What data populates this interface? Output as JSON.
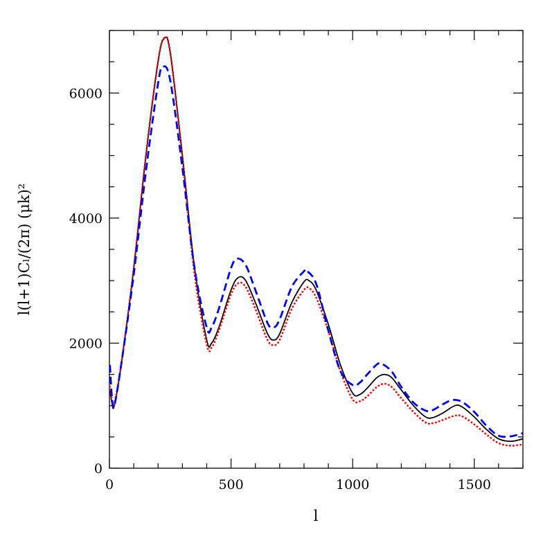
{
  "chart_data": {
    "type": "line",
    "title": "",
    "xlabel": "l",
    "ylabel": "l(l+1)Cₗ/(2π)  (μk)²",
    "xlim": [
      0,
      1700
    ],
    "ylim": [
      0,
      7000
    ],
    "x_ticks": [
      0,
      500,
      1000,
      1500
    ],
    "y_ticks": [
      0,
      2000,
      4000,
      6000
    ],
    "x_tick_labels": [
      "0",
      "500",
      "1000",
      "1500"
    ],
    "y_tick_labels": [
      "0",
      "2000",
      "4000",
      "6000"
    ],
    "grid": false,
    "series": [
      {
        "style": "solid",
        "color": "#000000",
        "points": [
          [
            2,
            1250
          ],
          [
            10,
            1050
          ],
          [
            20,
            1000
          ],
          [
            50,
            1700
          ],
          [
            100,
            3200
          ],
          [
            150,
            5000
          ],
          [
            200,
            6500
          ],
          [
            225,
            6870
          ],
          [
            250,
            6650
          ],
          [
            300,
            5000
          ],
          [
            350,
            3200
          ],
          [
            400,
            2050
          ],
          [
            420,
            2000
          ],
          [
            450,
            2250
          ],
          [
            500,
            2850
          ],
          [
            530,
            3050
          ],
          [
            560,
            3000
          ],
          [
            600,
            2650
          ],
          [
            650,
            2150
          ],
          [
            675,
            2050
          ],
          [
            700,
            2150
          ],
          [
            750,
            2650
          ],
          [
            800,
            2980
          ],
          [
            820,
            3000
          ],
          [
            850,
            2850
          ],
          [
            900,
            2300
          ],
          [
            950,
            1650
          ],
          [
            1000,
            1200
          ],
          [
            1030,
            1180
          ],
          [
            1060,
            1280
          ],
          [
            1100,
            1450
          ],
          [
            1130,
            1500
          ],
          [
            1160,
            1450
          ],
          [
            1200,
            1250
          ],
          [
            1250,
            1000
          ],
          [
            1300,
            820
          ],
          [
            1330,
            810
          ],
          [
            1370,
            880
          ],
          [
            1420,
            1000
          ],
          [
            1450,
            980
          ],
          [
            1500,
            820
          ],
          [
            1550,
            620
          ],
          [
            1600,
            470
          ],
          [
            1650,
            430
          ],
          [
            1700,
            470
          ]
        ]
      },
      {
        "style": "dotted",
        "color": "#ff0000",
        "points": [
          [
            2,
            1300
          ],
          [
            10,
            1100
          ],
          [
            20,
            1030
          ],
          [
            50,
            1700
          ],
          [
            100,
            3200
          ],
          [
            150,
            5000
          ],
          [
            200,
            6500
          ],
          [
            225,
            6880
          ],
          [
            250,
            6650
          ],
          [
            300,
            4950
          ],
          [
            350,
            3100
          ],
          [
            400,
            1980
          ],
          [
            420,
            1930
          ],
          [
            450,
            2200
          ],
          [
            500,
            2780
          ],
          [
            530,
            2960
          ],
          [
            560,
            2900
          ],
          [
            600,
            2550
          ],
          [
            650,
            2050
          ],
          [
            675,
            1970
          ],
          [
            700,
            2050
          ],
          [
            750,
            2550
          ],
          [
            800,
            2850
          ],
          [
            820,
            2880
          ],
          [
            850,
            2730
          ],
          [
            900,
            2200
          ],
          [
            950,
            1550
          ],
          [
            1000,
            1100
          ],
          [
            1030,
            1070
          ],
          [
            1060,
            1150
          ],
          [
            1100,
            1300
          ],
          [
            1130,
            1350
          ],
          [
            1160,
            1300
          ],
          [
            1200,
            1120
          ],
          [
            1250,
            900
          ],
          [
            1300,
            730
          ],
          [
            1330,
            720
          ],
          [
            1370,
            770
          ],
          [
            1420,
            840
          ],
          [
            1450,
            830
          ],
          [
            1500,
            700
          ],
          [
            1550,
            540
          ],
          [
            1600,
            400
          ],
          [
            1650,
            360
          ],
          [
            1700,
            380
          ]
        ]
      },
      {
        "style": "dashed",
        "color": "#0000ff",
        "points": [
          [
            2,
            1650
          ],
          [
            10,
            1150
          ],
          [
            20,
            1000
          ],
          [
            50,
            1700
          ],
          [
            100,
            3100
          ],
          [
            150,
            4750
          ],
          [
            200,
            6150
          ],
          [
            220,
            6420
          ],
          [
            250,
            6200
          ],
          [
            300,
            4800
          ],
          [
            350,
            3200
          ],
          [
            400,
            2250
          ],
          [
            420,
            2250
          ],
          [
            450,
            2550
          ],
          [
            500,
            3200
          ],
          [
            525,
            3350
          ],
          [
            560,
            3250
          ],
          [
            600,
            2850
          ],
          [
            650,
            2320
          ],
          [
            675,
            2250
          ],
          [
            700,
            2380
          ],
          [
            750,
            2900
          ],
          [
            800,
            3150
          ],
          [
            810,
            3160
          ],
          [
            850,
            2950
          ],
          [
            900,
            2200
          ],
          [
            950,
            1550
          ],
          [
            1000,
            1330
          ],
          [
            1030,
            1370
          ],
          [
            1060,
            1500
          ],
          [
            1100,
            1660
          ],
          [
            1120,
            1670
          ],
          [
            1160,
            1550
          ],
          [
            1200,
            1300
          ],
          [
            1250,
            1050
          ],
          [
            1300,
            920
          ],
          [
            1330,
            930
          ],
          [
            1370,
            1020
          ],
          [
            1410,
            1090
          ],
          [
            1450,
            1060
          ],
          [
            1500,
            900
          ],
          [
            1550,
            680
          ],
          [
            1600,
            520
          ],
          [
            1650,
            510
          ],
          [
            1700,
            560
          ]
        ]
      }
    ]
  }
}
